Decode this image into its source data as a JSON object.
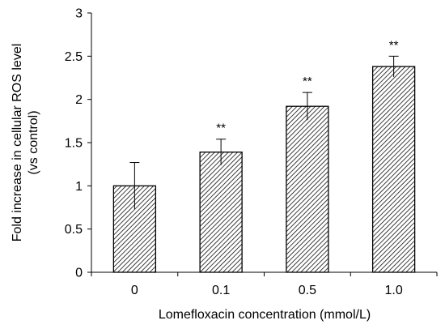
{
  "chart_data": {
    "type": "bar",
    "categories": [
      "0",
      "0.1",
      "0.5",
      "1.0"
    ],
    "values": [
      1.0,
      1.39,
      1.92,
      2.38
    ],
    "error": [
      0.27,
      0.15,
      0.16,
      0.12
    ],
    "significance": [
      "",
      "**",
      "**",
      "**"
    ],
    "xlabel": "Lomefloxacin concentration (mmol/L)",
    "ylabel_lines": [
      "Fold increase in cellular ROS level",
      "(vs control)"
    ],
    "ylim": [
      0,
      3
    ],
    "yticks": [
      "0",
      "0.5",
      "1",
      "1.5",
      "2",
      "2.5",
      "3"
    ],
    "grid": false,
    "legend": "none",
    "bar_pattern": "diagonal-hatch",
    "colors": {
      "bar_stroke": "#000000",
      "hatch": "#000000",
      "axis": "#000000"
    }
  }
}
